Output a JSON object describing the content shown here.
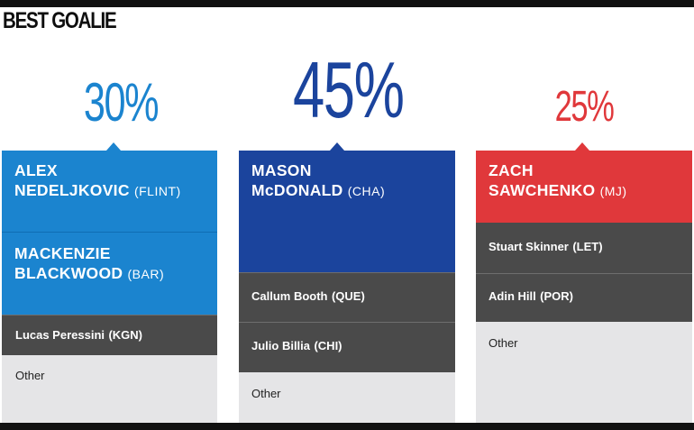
{
  "title": "BEST GOALIE",
  "colors": {
    "blue_light": "#1b84cf",
    "blue_dark": "#1b449d",
    "red": "#e0383b",
    "dark_gray": "#4a4a4a",
    "light_gray": "#e5e5e7"
  },
  "chart_data": {
    "type": "bar",
    "title": "BEST GOALIE",
    "categories": [
      "Alex Nedeljkovic (FLINT) / Mackenzie Blackwood (BAR)",
      "Mason McDonald (CHA)",
      "Zach Sawchenko (MJ)"
    ],
    "values": [
      30,
      45,
      25
    ],
    "unit": "%"
  },
  "columns": [
    {
      "percent": "30%",
      "color": "#1b84cf",
      "leaders": [
        {
          "first": "ALEX",
          "last": "NEDELJKOVIC",
          "team": "(FLINT)"
        },
        {
          "first": "MACKENZIE",
          "last": "BLACKWOOD",
          "team": "(BAR)"
        }
      ],
      "others": [
        {
          "name": "Lucas Peressini",
          "team": "(KGN)"
        }
      ],
      "other_label": "Other"
    },
    {
      "percent": "45%",
      "color": "#1b449d",
      "leaders": [
        {
          "first": "MASON",
          "last": "McDONALD",
          "team": "(CHA)"
        }
      ],
      "others": [
        {
          "name": "Callum Booth",
          "team": "(QUE)"
        },
        {
          "name": "Julio Billia",
          "team": "(CHI)"
        }
      ],
      "other_label": "Other"
    },
    {
      "percent": "25%",
      "color": "#e0383b",
      "leaders": [
        {
          "first": "ZACH",
          "last": "SAWCHENKO",
          "team": "(MJ)"
        }
      ],
      "others": [
        {
          "name": "Stuart Skinner",
          "team": "(LET)"
        },
        {
          "name": "Adin Hill",
          "team": "(POR)"
        }
      ],
      "other_label": "Other"
    }
  ]
}
